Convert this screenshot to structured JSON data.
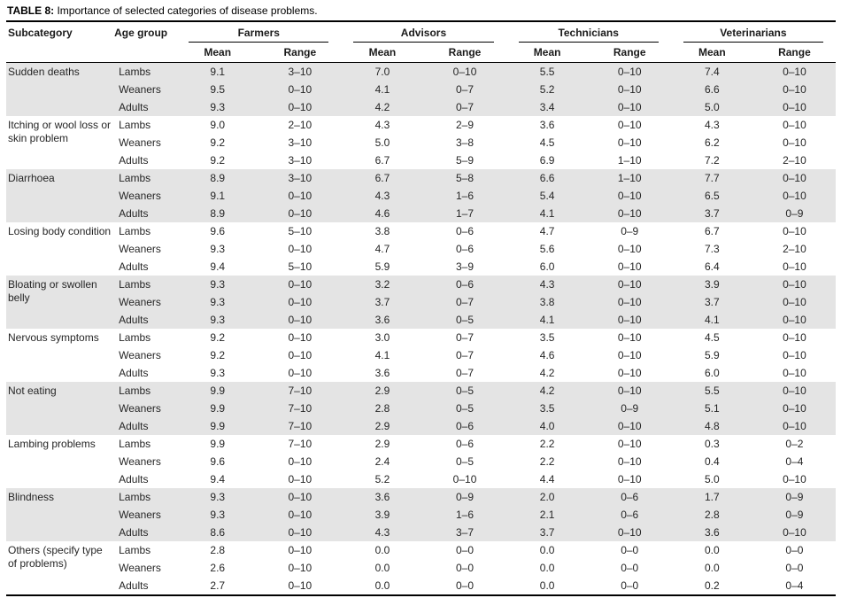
{
  "title": {
    "label": "TABLE 8:",
    "text": " Importance of selected categories of disease problems."
  },
  "table": {
    "columns": {
      "subcategory": "Subcategory",
      "age_group": "Age group"
    },
    "groups": [
      "Farmers",
      "Advisors",
      "Technicians",
      "Veterinarians"
    ],
    "subheaders": {
      "mean": "Mean",
      "range": "Range"
    },
    "shading_color": "#e4e4e4",
    "rows": [
      {
        "subcategory": "Sudden deaths",
        "shaded": true,
        "entries": [
          {
            "age": "Lambs",
            "values": [
              "9.1",
              "3–10",
              "7.0",
              "0–10",
              "5.5",
              "0–10",
              "7.4",
              "0–10"
            ]
          },
          {
            "age": "Weaners",
            "values": [
              "9.5",
              "0–10",
              "4.1",
              "0–7",
              "5.2",
              "0–10",
              "6.6",
              "0–10"
            ]
          },
          {
            "age": "Adults",
            "values": [
              "9.3",
              "0–10",
              "4.2",
              "0–7",
              "3.4",
              "0–10",
              "5.0",
              "0–10"
            ]
          }
        ]
      },
      {
        "subcategory": "Itching or wool loss or skin problem",
        "shaded": false,
        "entries": [
          {
            "age": "Lambs",
            "values": [
              "9.0",
              "2–10",
              "4.3",
              "2–9",
              "3.6",
              "0–10",
              "4.3",
              "0–10"
            ]
          },
          {
            "age": "Weaners",
            "values": [
              "9.2",
              "3–10",
              "5.0",
              "3–8",
              "4.5",
              "0–10",
              "6.2",
              "0–10"
            ]
          },
          {
            "age": "Adults",
            "values": [
              "9.2",
              "3–10",
              "6.7",
              "5–9",
              "6.9",
              "1–10",
              "7.2",
              "2–10"
            ]
          }
        ]
      },
      {
        "subcategory": "Diarrhoea",
        "shaded": true,
        "entries": [
          {
            "age": "Lambs",
            "values": [
              "8.9",
              "3–10",
              "6.7",
              "5–8",
              "6.6",
              "1–10",
              "7.7",
              "0–10"
            ]
          },
          {
            "age": "Weaners",
            "values": [
              "9.1",
              "0–10",
              "4.3",
              "1–6",
              "5.4",
              "0–10",
              "6.5",
              "0–10"
            ]
          },
          {
            "age": "Adults",
            "values": [
              "8.9",
              "0–10",
              "4.6",
              "1–7",
              "4.1",
              "0–10",
              "3.7",
              "0–9"
            ]
          }
        ]
      },
      {
        "subcategory": "Losing body condition",
        "shaded": false,
        "entries": [
          {
            "age": "Lambs",
            "values": [
              "9.6",
              "5–10",
              "3.8",
              "0–6",
              "4.7",
              "0–9",
              "6.7",
              "0–10"
            ]
          },
          {
            "age": "Weaners",
            "values": [
              "9.3",
              "0–10",
              "4.7",
              "0–6",
              "5.6",
              "0–10",
              "7.3",
              "2–10"
            ]
          },
          {
            "age": "Adults",
            "values": [
              "9.4",
              "5–10",
              "5.9",
              "3–9",
              "6.0",
              "0–10",
              "6.4",
              "0–10"
            ]
          }
        ]
      },
      {
        "subcategory": "Bloating or swollen belly",
        "shaded": true,
        "entries": [
          {
            "age": "Lambs",
            "values": [
              "9.3",
              "0–10",
              "3.2",
              "0–6",
              "4.3",
              "0–10",
              "3.9",
              "0–10"
            ]
          },
          {
            "age": "Weaners",
            "values": [
              "9.3",
              "0–10",
              "3.7",
              "0–7",
              "3.8",
              "0–10",
              "3.7",
              "0–10"
            ]
          },
          {
            "age": "Adults",
            "values": [
              "9.3",
              "0–10",
              "3.6",
              "0–5",
              "4.1",
              "0–10",
              "4.1",
              "0–10"
            ]
          }
        ]
      },
      {
        "subcategory": "Nervous symptoms",
        "shaded": false,
        "entries": [
          {
            "age": "Lambs",
            "values": [
              "9.2",
              "0–10",
              "3.0",
              "0–7",
              "3.5",
              "0–10",
              "4.5",
              "0–10"
            ]
          },
          {
            "age": "Weaners",
            "values": [
              "9.2",
              "0–10",
              "4.1",
              "0–7",
              "4.6",
              "0–10",
              "5.9",
              "0–10"
            ]
          },
          {
            "age": "Adults",
            "values": [
              "9.3",
              "0–10",
              "3.6",
              "0–7",
              "4.2",
              "0–10",
              "6.0",
              "0–10"
            ]
          }
        ]
      },
      {
        "subcategory": "Not eating",
        "shaded": true,
        "entries": [
          {
            "age": "Lambs",
            "values": [
              "9.9",
              "7–10",
              "2.9",
              "0–5",
              "4.2",
              "0–10",
              "5.5",
              "0–10"
            ]
          },
          {
            "age": "Weaners",
            "values": [
              "9.9",
              "7–10",
              "2.8",
              "0–5",
              "3.5",
              "0–9",
              "5.1",
              "0–10"
            ]
          },
          {
            "age": "Adults",
            "values": [
              "9.9",
              "7–10",
              "2.9",
              "0–6",
              "4.0",
              "0–10",
              "4.8",
              "0–10"
            ]
          }
        ]
      },
      {
        "subcategory": "Lambing problems",
        "shaded": false,
        "entries": [
          {
            "age": "Lambs",
            "values": [
              "9.9",
              "7–10",
              "2.9",
              "0–6",
              "2.2",
              "0–10",
              "0.3",
              "0–2"
            ]
          },
          {
            "age": "Weaners",
            "values": [
              "9.6",
              "0–10",
              "2.4",
              "0–5",
              "2.2",
              "0–10",
              "0.4",
              "0–4"
            ]
          },
          {
            "age": "Adults",
            "values": [
              "9.4",
              "0–10",
              "5.2",
              "0–10",
              "4.4",
              "0–10",
              "5.0",
              "0–10"
            ]
          }
        ]
      },
      {
        "subcategory": "Blindness",
        "shaded": true,
        "entries": [
          {
            "age": "Lambs",
            "values": [
              "9.3",
              "0–10",
              "3.6",
              "0–9",
              "2.0",
              "0–6",
              "1.7",
              "0–9"
            ]
          },
          {
            "age": "Weaners",
            "values": [
              "9.3",
              "0–10",
              "3.9",
              "1–6",
              "2.1",
              "0–6",
              "2.8",
              "0–9"
            ]
          },
          {
            "age": "Adults",
            "values": [
              "8.6",
              "0–10",
              "4.3",
              "3–7",
              "3.7",
              "0–10",
              "3.6",
              "0–10"
            ]
          }
        ]
      },
      {
        "subcategory": "Others (specify type of problems)",
        "shaded": false,
        "entries": [
          {
            "age": "Lambs",
            "values": [
              "2.8",
              "0–10",
              "0.0",
              "0–0",
              "0.0",
              "0–0",
              "0.0",
              "0–0"
            ]
          },
          {
            "age": "Weaners",
            "values": [
              "2.6",
              "0–10",
              "0.0",
              "0–0",
              "0.0",
              "0–0",
              "0.0",
              "0–0"
            ]
          },
          {
            "age": "Adults",
            "values": [
              "2.7",
              "0–10",
              "0.0",
              "0–0",
              "0.0",
              "0–0",
              "0.2",
              "0–4"
            ]
          }
        ]
      }
    ]
  }
}
